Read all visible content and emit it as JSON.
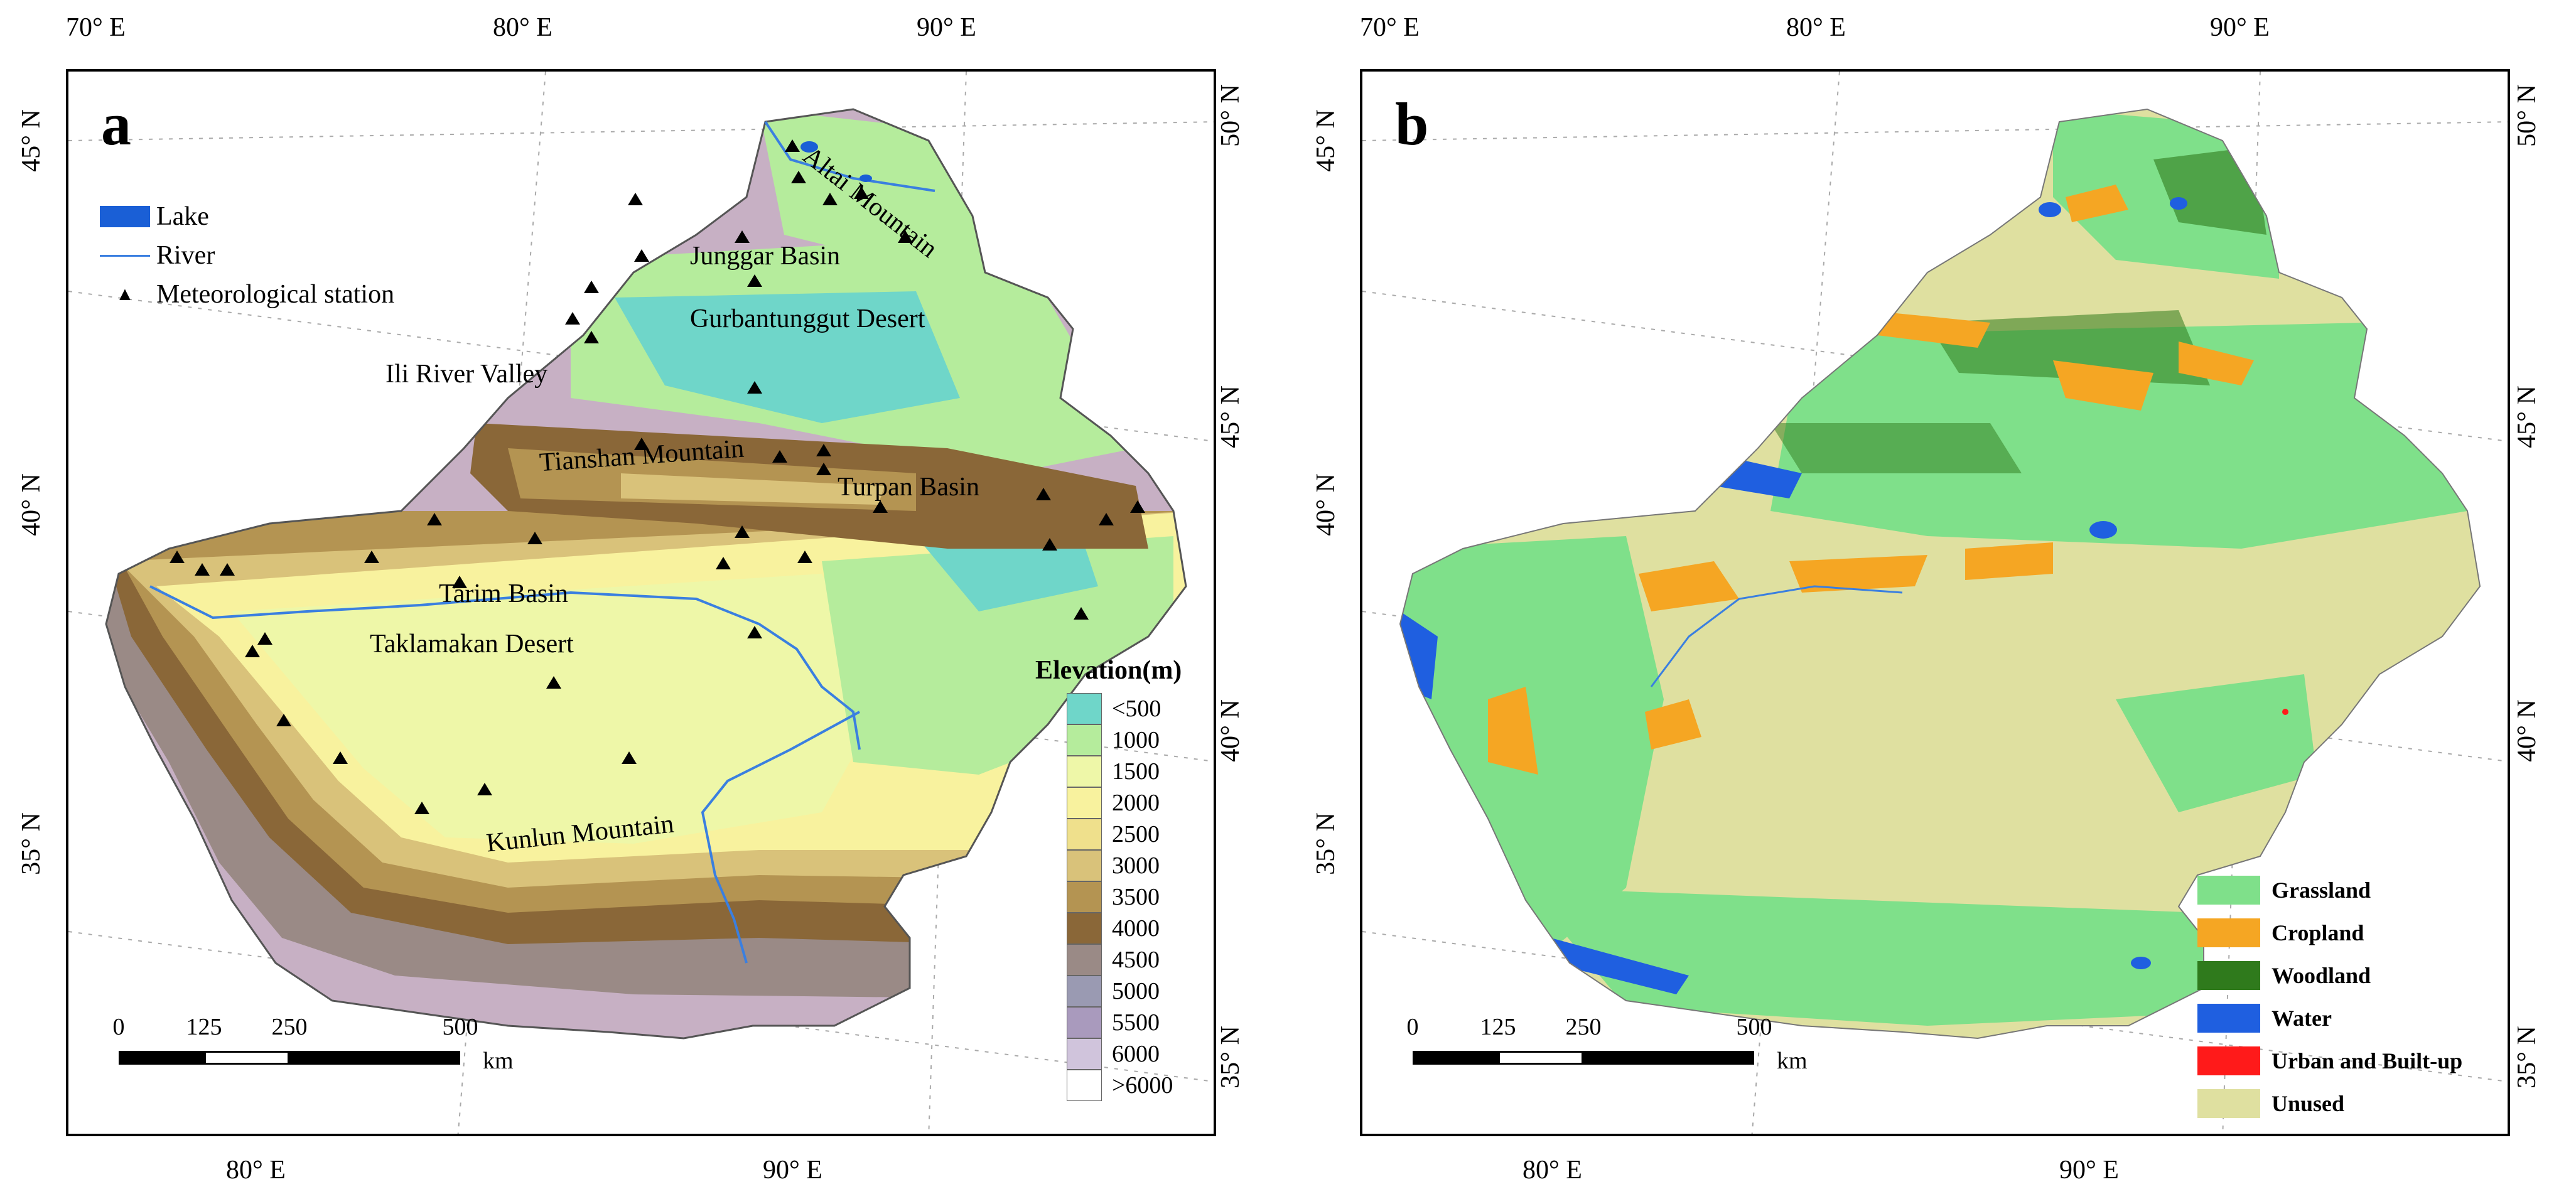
{
  "panel_a": {
    "label": "a",
    "lon_top": [
      "70° E",
      "80° E",
      "90° E"
    ],
    "lon_bottom": [
      "80° E",
      "90° E"
    ],
    "lat_left": [
      "45° N",
      "40° N",
      "35° N"
    ],
    "lat_right": [
      "50° N",
      "45° N",
      "40° N",
      "35° N"
    ],
    "legend": [
      {
        "symbol": "lake-swatch",
        "label": "Lake",
        "color": "#1a5fd6"
      },
      {
        "symbol": "river-line",
        "label": "River",
        "color": "#3a7fe0"
      },
      {
        "symbol": "triangle-icon",
        "label": "Meteorological station",
        "color": "#000000"
      }
    ],
    "places": [
      {
        "name": "Altai Mountain"
      },
      {
        "name": "Junggar Basin"
      },
      {
        "name": "Gurbantunggut Desert"
      },
      {
        "name": "Ili River Valley"
      },
      {
        "name": "Tianshan Mountain"
      },
      {
        "name": "Turpan Basin"
      },
      {
        "name": "Tarim Basin"
      },
      {
        "name": "Taklamakan Desert"
      },
      {
        "name": "Kunlun Mountain"
      }
    ],
    "elevation_legend": {
      "title": "Elevation(m)",
      "classes": [
        {
          "label": "<500",
          "color": "#6fd6c9"
        },
        {
          "label": "1000",
          "color": "#b5ec9c"
        },
        {
          "label": "1500",
          "color": "#eef7a8"
        },
        {
          "label": "2000",
          "color": "#f8f29e"
        },
        {
          "label": "2500",
          "color": "#efe08c"
        },
        {
          "label": "3000",
          "color": "#d9c27a"
        },
        {
          "label": "3500",
          "color": "#b49452"
        },
        {
          "label": "4000",
          "color": "#8a6738"
        },
        {
          "label": "4500",
          "color": "#9a8a86"
        },
        {
          "label": "5000",
          "color": "#9a9ab2"
        },
        {
          "label": "5500",
          "color": "#a99abd"
        },
        {
          "label": "6000",
          "color": "#d0c4dc"
        },
        {
          "label": ">6000",
          "color": "#ffffff"
        }
      ]
    },
    "scale_bar": {
      "ticks": [
        "0",
        "125",
        "250",
        "500"
      ],
      "unit": "km"
    }
  },
  "panel_b": {
    "label": "b",
    "lon_top": [
      "70° E",
      "80° E",
      "90° E"
    ],
    "lon_bottom": [
      "80° E",
      "90° E"
    ],
    "lat_left": [
      "45° N",
      "40° N",
      "35° N"
    ],
    "lat_right": [
      "50° N",
      "45° N",
      "40° N",
      "35° N"
    ],
    "landuse_legend": [
      {
        "label": "Grassland",
        "color": "#7fe08a"
      },
      {
        "label": "Cropland",
        "color": "#f5a623"
      },
      {
        "label": "Woodland",
        "color": "#2f7a1c"
      },
      {
        "label": "Water",
        "color": "#1f5fe0"
      },
      {
        "label": "Urban and Built-up",
        "color": "#ff1a1a"
      },
      {
        "label": "Unused",
        "color": "#dfe0a0"
      }
    ],
    "scale_bar": {
      "ticks": [
        "0",
        "125",
        "250",
        "500"
      ],
      "unit": "km"
    }
  }
}
